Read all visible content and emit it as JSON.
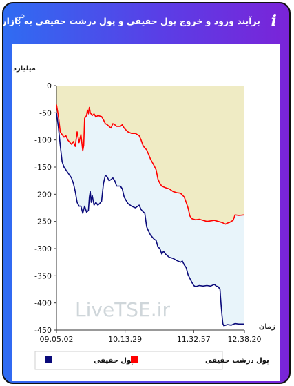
{
  "header": {
    "title": "برآیند ورود و خروج پول حقیقی و پول درشت حقیقی به بازار",
    "info_icon": "i"
  },
  "chart_data": {
    "type": "line",
    "title": "",
    "ylabel": "میلیارد تومان",
    "xlabel": "زمان",
    "ylim": [
      -450,
      0
    ],
    "yticks": [
      0,
      -50,
      -100,
      -150,
      -200,
      -250,
      -300,
      -350,
      -400,
      -450
    ],
    "ytick_labels": [
      "0",
      "-50",
      "-100",
      "-150",
      "-200",
      "-250",
      "-300",
      "-350",
      "-400",
      "-450"
    ],
    "xlim": [
      0,
      100
    ],
    "xticks": [
      {
        "x": 0,
        "label": "09.05.02"
      },
      {
        "x": 36.5,
        "label": "10.13.29"
      },
      {
        "x": 73,
        "label": "11.32.57"
      },
      {
        "x": 100,
        "label": "12.38.20"
      }
    ],
    "watermark": "LiveTSE.ir",
    "legend": [
      {
        "label": "پول حقیقی",
        "color": "#0a0a7a"
      },
      {
        "label": "پول درشت حقیقی",
        "color": "#ff0000"
      }
    ],
    "series": [
      {
        "name": "پول درشت حقیقی",
        "color": "#ff0000",
        "points": [
          [
            0,
            -35
          ],
          [
            1,
            -55
          ],
          [
            2,
            -85
          ],
          [
            4,
            -95
          ],
          [
            5,
            -92
          ],
          [
            6,
            -100
          ],
          [
            8,
            -108
          ],
          [
            9,
            -103
          ],
          [
            10,
            -112
          ],
          [
            11,
            -85
          ],
          [
            12,
            -105
          ],
          [
            13,
            -90
          ],
          [
            14,
            -120
          ],
          [
            14.5,
            -110
          ],
          [
            15,
            -60
          ],
          [
            16,
            -55
          ],
          [
            16.5,
            -45
          ],
          [
            17,
            -52
          ],
          [
            17.5,
            -40
          ],
          [
            18,
            -50
          ],
          [
            19,
            -55
          ],
          [
            20,
            -52
          ],
          [
            21,
            -58
          ],
          [
            22,
            -55
          ],
          [
            24,
            -57
          ],
          [
            25,
            -63
          ],
          [
            26,
            -70
          ],
          [
            27,
            -72
          ],
          [
            28,
            -75
          ],
          [
            29,
            -78
          ],
          [
            30,
            -70
          ],
          [
            31,
            -72
          ],
          [
            32,
            -75
          ],
          [
            34,
            -75
          ],
          [
            35,
            -72
          ],
          [
            36,
            -78
          ],
          [
            38,
            -85
          ],
          [
            40,
            -88
          ],
          [
            42,
            -88
          ],
          [
            44,
            -92
          ],
          [
            45,
            -100
          ],
          [
            46,
            -110
          ],
          [
            47,
            -115
          ],
          [
            48,
            -118
          ],
          [
            50,
            -135
          ],
          [
            52,
            -148
          ],
          [
            53,
            -155
          ],
          [
            54,
            -172
          ],
          [
            55,
            -180
          ],
          [
            56,
            -185
          ],
          [
            58,
            -188
          ],
          [
            60,
            -190
          ],
          [
            62,
            -195
          ],
          [
            64,
            -197
          ],
          [
            66,
            -198
          ],
          [
            68,
            -205
          ],
          [
            69,
            -215
          ],
          [
            70,
            -225
          ],
          [
            71,
            -240
          ],
          [
            72,
            -245
          ],
          [
            74,
            -247
          ],
          [
            76,
            -246
          ],
          [
            78,
            -248
          ],
          [
            80,
            -250
          ],
          [
            82,
            -249
          ],
          [
            84,
            -248
          ],
          [
            86,
            -250
          ],
          [
            88,
            -252
          ],
          [
            90,
            -255
          ],
          [
            91,
            -253
          ],
          [
            92,
            -252
          ],
          [
            93,
            -250
          ],
          [
            94,
            -248
          ],
          [
            95,
            -238
          ],
          [
            97,
            -239
          ],
          [
            100,
            -238
          ]
        ]
      },
      {
        "name": "پول حقیقی",
        "color": "#0a0a7a",
        "points": [
          [
            0,
            -50
          ],
          [
            1,
            -75
          ],
          [
            2,
            -110
          ],
          [
            3,
            -140
          ],
          [
            4,
            -150
          ],
          [
            6,
            -160
          ],
          [
            8,
            -170
          ],
          [
            9,
            -180
          ],
          [
            10,
            -195
          ],
          [
            11,
            -215
          ],
          [
            12,
            -222
          ],
          [
            13,
            -222
          ],
          [
            14,
            -235
          ],
          [
            15,
            -222
          ],
          [
            16,
            -233
          ],
          [
            17,
            -230
          ],
          [
            17.5,
            -205
          ],
          [
            18,
            -195
          ],
          [
            18.5,
            -215
          ],
          [
            19,
            -202
          ],
          [
            20,
            -220
          ],
          [
            21,
            -215
          ],
          [
            22,
            -220
          ],
          [
            23,
            -217
          ],
          [
            24,
            -213
          ],
          [
            25,
            -180
          ],
          [
            26,
            -165
          ],
          [
            27,
            -168
          ],
          [
            28,
            -175
          ],
          [
            29,
            -173
          ],
          [
            30,
            -170
          ],
          [
            31,
            -175
          ],
          [
            32,
            -185
          ],
          [
            34,
            -185
          ],
          [
            35,
            -190
          ],
          [
            36,
            -205
          ],
          [
            38,
            -217
          ],
          [
            40,
            -222
          ],
          [
            42,
            -225
          ],
          [
            44,
            -220
          ],
          [
            45,
            -228
          ],
          [
            46,
            -232
          ],
          [
            47,
            -235
          ],
          [
            48,
            -260
          ],
          [
            49,
            -268
          ],
          [
            50,
            -275
          ],
          [
            52,
            -283
          ],
          [
            53,
            -285
          ],
          [
            54,
            -297
          ],
          [
            55,
            -300
          ],
          [
            56,
            -310
          ],
          [
            57,
            -305
          ],
          [
            58,
            -310
          ],
          [
            60,
            -316
          ],
          [
            62,
            -318
          ],
          [
            64,
            -322
          ],
          [
            66,
            -325
          ],
          [
            67,
            -323
          ],
          [
            68,
            -330
          ],
          [
            69,
            -335
          ],
          [
            70,
            -348
          ],
          [
            71,
            -355
          ],
          [
            72,
            -362
          ],
          [
            73,
            -368
          ],
          [
            74,
            -370
          ],
          [
            76,
            -368
          ],
          [
            78,
            -369
          ],
          [
            80,
            -368
          ],
          [
            82,
            -369
          ],
          [
            84,
            -366
          ],
          [
            85,
            -369
          ],
          [
            86,
            -370
          ],
          [
            87,
            -375
          ],
          [
            87.5,
            -400
          ],
          [
            88,
            -420
          ],
          [
            88.5,
            -438
          ],
          [
            89,
            -442
          ],
          [
            91,
            -440
          ],
          [
            93,
            -441
          ],
          [
            95,
            -438
          ],
          [
            97,
            -439
          ],
          [
            100,
            -439
          ]
        ]
      }
    ]
  }
}
